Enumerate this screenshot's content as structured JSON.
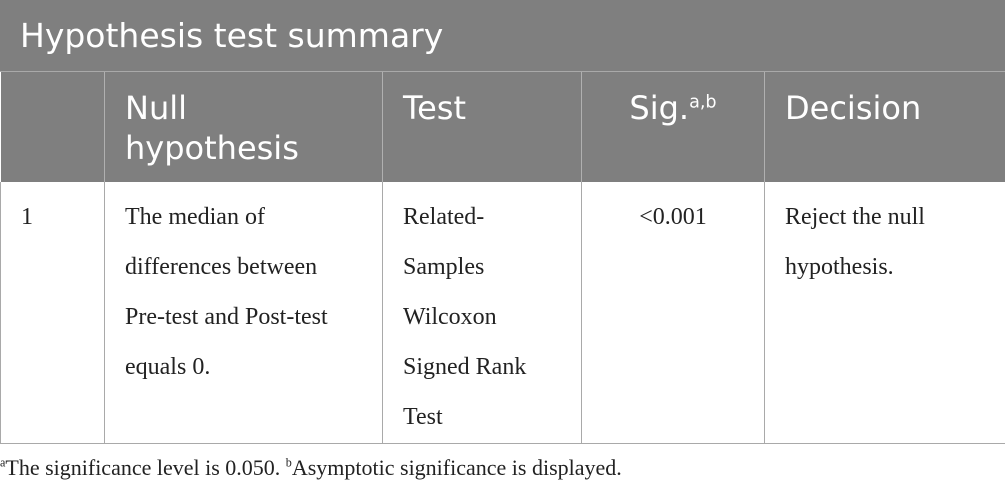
{
  "header": {
    "title": "Hypothesis test summary"
  },
  "table": {
    "columns": [
      "",
      "Null hypothesis",
      "Test",
      {
        "text": "Sig.",
        "sup": "a,b"
      },
      "Decision"
    ],
    "rows": [
      [
        "1",
        "The median of differences between Pre-test and Post-test equals 0.",
        "Related-Samples Wilcoxon Signed Rank Test",
        "<0.001",
        "Reject the null hypothesis."
      ]
    ]
  },
  "footnotes": [
    {
      "mark": "a",
      "text": "The significance level is 0.050. "
    },
    {
      "mark": "b",
      "text": "Asymptotic significance is displayed."
    }
  ]
}
